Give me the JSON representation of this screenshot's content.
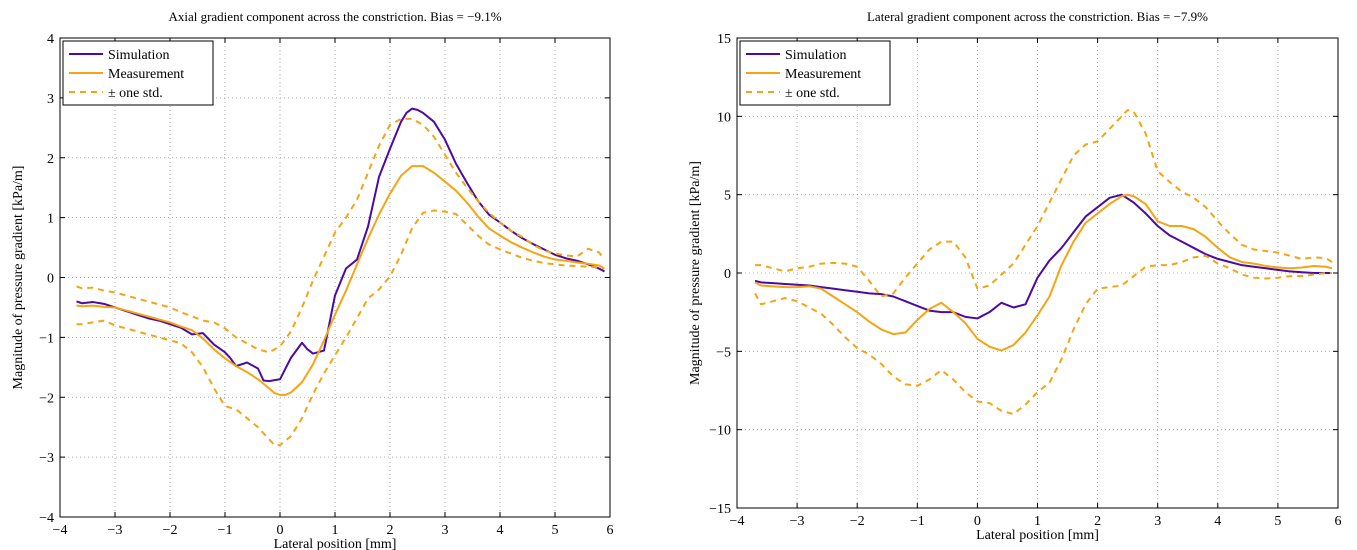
{
  "chart_data": [
    {
      "type": "line",
      "title": "Axial gradient component across the constriction. Bias = −9.1%",
      "xlabel": "Lateral position [mm]",
      "ylabel": "Magnitude of pressure gradient [kPa/m]",
      "xlim": [
        -4,
        6
      ],
      "ylim": [
        -4,
        4
      ],
      "xticks": [
        -4,
        -3,
        -2,
        -1,
        0,
        1,
        2,
        3,
        4,
        5,
        6
      ],
      "yticks": [
        -4,
        -3,
        -2,
        -1,
        0,
        1,
        2,
        3,
        4
      ],
      "xtick_labels": [
        "−4",
        "−3",
        "−2",
        "−1",
        "0",
        "1",
        "2",
        "3",
        "4",
        "5",
        "6"
      ],
      "ytick_labels": [
        "−4",
        "−3",
        "−2",
        "−1",
        "0",
        "1",
        "2",
        "3",
        "4"
      ],
      "grid": true,
      "legend_position": "top-left",
      "legend": [
        "Simulation",
        "Measurement",
        "± one std."
      ],
      "series": [
        {
          "name": "Simulation",
          "color": "#4b0aa4",
          "dash": "solid",
          "x": [
            -3.7,
            -3.6,
            -3.4,
            -3.2,
            -3.0,
            -2.8,
            -2.6,
            -2.4,
            -2.2,
            -2.0,
            -1.8,
            -1.6,
            -1.4,
            -1.2,
            -1.0,
            -0.9,
            -0.8,
            -0.6,
            -0.4,
            -0.3,
            -0.2,
            0.0,
            0.2,
            0.4,
            0.5,
            0.6,
            0.8,
            1.0,
            1.2,
            1.4,
            1.6,
            1.8,
            2.0,
            2.2,
            2.3,
            2.4,
            2.5,
            2.6,
            2.8,
            3.0,
            3.2,
            3.4,
            3.6,
            3.8,
            4.0,
            4.2,
            4.4,
            4.6,
            4.8,
            5.0,
            5.2,
            5.4,
            5.6,
            5.8,
            5.9
          ],
          "y": [
            -0.4,
            -0.43,
            -0.41,
            -0.44,
            -0.5,
            -0.56,
            -0.62,
            -0.68,
            -0.72,
            -0.78,
            -0.84,
            -0.95,
            -0.93,
            -1.12,
            -1.25,
            -1.35,
            -1.48,
            -1.42,
            -1.52,
            -1.72,
            -1.73,
            -1.7,
            -1.34,
            -1.09,
            -1.2,
            -1.27,
            -1.22,
            -0.3,
            0.15,
            0.3,
            0.85,
            1.68,
            2.15,
            2.6,
            2.75,
            2.82,
            2.8,
            2.75,
            2.6,
            2.3,
            1.9,
            1.58,
            1.28,
            1.05,
            0.92,
            0.78,
            0.66,
            0.56,
            0.47,
            0.38,
            0.32,
            0.28,
            0.22,
            0.15,
            0.1
          ]
        },
        {
          "name": "Measurement",
          "color": "#f5a413",
          "dash": "solid",
          "x": [
            -3.7,
            -3.6,
            -3.4,
            -3.2,
            -3.0,
            -2.8,
            -2.6,
            -2.4,
            -2.2,
            -2.0,
            -1.8,
            -1.6,
            -1.4,
            -1.2,
            -1.0,
            -0.8,
            -0.6,
            -0.4,
            -0.2,
            -0.1,
            0.0,
            0.1,
            0.2,
            0.4,
            0.6,
            0.8,
            1.0,
            1.2,
            1.4,
            1.6,
            1.8,
            2.0,
            2.2,
            2.4,
            2.6,
            2.8,
            3.0,
            3.2,
            3.4,
            3.6,
            3.8,
            4.0,
            4.2,
            4.4,
            4.6,
            4.8,
            5.0,
            5.2,
            5.4,
            5.6,
            5.8,
            5.9
          ],
          "y": [
            -0.47,
            -0.48,
            -0.47,
            -0.49,
            -0.5,
            -0.55,
            -0.6,
            -0.65,
            -0.7,
            -0.75,
            -0.82,
            -0.88,
            -1.02,
            -1.2,
            -1.35,
            -1.48,
            -1.58,
            -1.7,
            -1.85,
            -1.93,
            -1.96,
            -1.96,
            -1.92,
            -1.75,
            -1.45,
            -1.05,
            -0.62,
            -0.22,
            0.22,
            0.65,
            1.05,
            1.4,
            1.7,
            1.86,
            1.86,
            1.75,
            1.6,
            1.45,
            1.25,
            1.02,
            0.82,
            0.7,
            0.59,
            0.5,
            0.42,
            0.35,
            0.3,
            0.28,
            0.25,
            0.23,
            0.2,
            0.15
          ]
        },
        {
          "name": "± one std.",
          "color": "#f5a413",
          "dash": "dashed",
          "x": [
            -3.7,
            -3.6,
            -3.4,
            -3.2,
            -3.0,
            -2.8,
            -2.6,
            -2.4,
            -2.2,
            -2.0,
            -1.8,
            -1.6,
            -1.4,
            -1.2,
            -1.0,
            -0.8,
            -0.6,
            -0.4,
            -0.2,
            0.0,
            0.2,
            0.4,
            0.6,
            0.8,
            1.0,
            1.2,
            1.4,
            1.6,
            1.8,
            2.0,
            2.2,
            2.4,
            2.6,
            2.8,
            3.0,
            3.2,
            3.4,
            3.6,
            3.8,
            4.0,
            4.2,
            4.4,
            4.6,
            4.8,
            5.0,
            5.2,
            5.4,
            5.6,
            5.8,
            5.9
          ],
          "y": [
            -0.15,
            -0.18,
            -0.17,
            -0.22,
            -0.25,
            -0.3,
            -0.35,
            -0.4,
            -0.45,
            -0.5,
            -0.58,
            -0.65,
            -0.72,
            -0.75,
            -0.85,
            -1.0,
            -1.1,
            -1.2,
            -1.25,
            -1.15,
            -0.9,
            -0.5,
            -0.05,
            0.35,
            0.75,
            1.0,
            1.3,
            1.75,
            2.2,
            2.55,
            2.65,
            2.65,
            2.55,
            2.35,
            2.05,
            1.75,
            1.5,
            1.28,
            1.08,
            0.92,
            0.78,
            0.68,
            0.55,
            0.45,
            0.4,
            0.37,
            0.35,
            0.48,
            0.42,
            0.3
          ]
        },
        {
          "name": "",
          "color": "#f5a413",
          "dash": "dashed",
          "x": [
            -3.7,
            -3.6,
            -3.4,
            -3.2,
            -3.0,
            -2.8,
            -2.6,
            -2.4,
            -2.2,
            -2.0,
            -1.8,
            -1.6,
            -1.4,
            -1.2,
            -1.0,
            -0.8,
            -0.6,
            -0.4,
            -0.2,
            -0.1,
            0.0,
            0.2,
            0.4,
            0.6,
            0.8,
            1.0,
            1.2,
            1.4,
            1.6,
            1.8,
            2.0,
            2.2,
            2.4,
            2.6,
            2.8,
            3.0,
            3.2,
            3.4,
            3.6,
            3.8,
            4.0,
            4.2,
            4.4,
            4.6,
            4.8,
            5.0,
            5.2,
            5.4,
            5.6,
            5.8,
            5.9
          ],
          "y": [
            -0.78,
            -0.78,
            -0.75,
            -0.72,
            -0.8,
            -0.85,
            -0.9,
            -0.95,
            -1.0,
            -1.05,
            -1.1,
            -1.25,
            -1.5,
            -1.85,
            -2.15,
            -2.2,
            -2.35,
            -2.5,
            -2.7,
            -2.8,
            -2.8,
            -2.65,
            -2.35,
            -1.95,
            -1.6,
            -1.3,
            -1.0,
            -0.68,
            -0.35,
            -0.2,
            0.02,
            0.38,
            0.82,
            1.08,
            1.12,
            1.1,
            1.06,
            0.88,
            0.7,
            0.55,
            0.47,
            0.4,
            0.33,
            0.28,
            0.24,
            0.22,
            0.2,
            0.19,
            0.18,
            0.17,
            0.15
          ]
        }
      ]
    },
    {
      "type": "line",
      "title": "Lateral gradient component across the constriction. Bias = −7.9%",
      "xlabel": "Lateral position [mm]",
      "ylabel": "Magnitude of pressure gradient [kPa/m]",
      "xlim": [
        -4,
        6
      ],
      "ylim": [
        -15,
        15
      ],
      "xticks": [
        -4,
        -3,
        -2,
        -1,
        0,
        1,
        2,
        3,
        4,
        5,
        6
      ],
      "yticks": [
        -15,
        -10,
        -5,
        0,
        5,
        10,
        15
      ],
      "xtick_labels": [
        "−4",
        "−3",
        "−2",
        "−1",
        "0",
        "1",
        "2",
        "3",
        "4",
        "5",
        "6"
      ],
      "ytick_labels": [
        "−15",
        "−10",
        "−5",
        "0",
        "5",
        "10",
        "15"
      ],
      "grid": true,
      "legend_position": "top-left",
      "legend": [
        "Simulation",
        "Measurement",
        "± one std."
      ],
      "series": [
        {
          "name": "Simulation",
          "color": "#4b0aa4",
          "dash": "solid",
          "x": [
            -3.7,
            -3.6,
            -3.4,
            -3.2,
            -3.0,
            -2.8,
            -2.6,
            -2.4,
            -2.2,
            -2.0,
            -1.8,
            -1.6,
            -1.4,
            -1.2,
            -1.0,
            -0.8,
            -0.6,
            -0.4,
            -0.2,
            0.0,
            0.2,
            0.4,
            0.6,
            0.8,
            1.0,
            1.2,
            1.4,
            1.6,
            1.8,
            2.0,
            2.2,
            2.4,
            2.6,
            2.8,
            3.0,
            3.2,
            3.4,
            3.6,
            3.8,
            4.0,
            4.2,
            4.4,
            4.6,
            4.8,
            5.0,
            5.2,
            5.4,
            5.6,
            5.8,
            5.9
          ],
          "y": [
            -0.5,
            -0.6,
            -0.65,
            -0.7,
            -0.75,
            -0.8,
            -0.9,
            -1.0,
            -1.1,
            -1.2,
            -1.3,
            -1.35,
            -1.5,
            -1.8,
            -2.1,
            -2.4,
            -2.5,
            -2.5,
            -2.8,
            -2.9,
            -2.5,
            -1.9,
            -2.2,
            -2.0,
            -0.3,
            0.8,
            1.6,
            2.6,
            3.6,
            4.2,
            4.8,
            5.0,
            4.5,
            3.8,
            3.0,
            2.4,
            2.0,
            1.6,
            1.2,
            0.9,
            0.7,
            0.5,
            0.4,
            0.3,
            0.2,
            0.1,
            0.05,
            0.0,
            0.0,
            0.0
          ]
        },
        {
          "name": "Measurement",
          "color": "#f5a413",
          "dash": "solid",
          "x": [
            -3.7,
            -3.6,
            -3.4,
            -3.2,
            -3.0,
            -2.8,
            -2.6,
            -2.4,
            -2.2,
            -2.0,
            -1.8,
            -1.6,
            -1.4,
            -1.2,
            -1.0,
            -0.8,
            -0.6,
            -0.4,
            -0.2,
            0.0,
            0.2,
            0.4,
            0.6,
            0.8,
            1.0,
            1.2,
            1.4,
            1.6,
            1.8,
            2.0,
            2.2,
            2.4,
            2.5,
            2.6,
            2.8,
            3.0,
            3.2,
            3.4,
            3.6,
            3.8,
            4.0,
            4.2,
            4.4,
            4.6,
            4.8,
            5.0,
            5.2,
            5.4,
            5.6,
            5.8,
            5.9
          ],
          "y": [
            -0.6,
            -0.8,
            -0.85,
            -0.9,
            -0.9,
            -0.85,
            -1.0,
            -1.5,
            -2.0,
            -2.5,
            -3.1,
            -3.6,
            -3.9,
            -3.8,
            -3.0,
            -2.3,
            -1.9,
            -2.5,
            -3.2,
            -4.2,
            -4.7,
            -4.95,
            -4.6,
            -3.8,
            -2.7,
            -1.5,
            0.5,
            2.0,
            3.2,
            3.8,
            4.4,
            4.9,
            5.0,
            4.9,
            4.4,
            3.3,
            3.0,
            3.0,
            2.8,
            2.3,
            1.6,
            1.0,
            0.7,
            0.6,
            0.45,
            0.35,
            0.3,
            0.35,
            0.45,
            0.4,
            0.3
          ]
        },
        {
          "name": "± one std.",
          "color": "#f5a413",
          "dash": "dashed",
          "x": [
            -3.7,
            -3.6,
            -3.4,
            -3.2,
            -3.0,
            -2.8,
            -2.6,
            -2.4,
            -2.2,
            -2.0,
            -1.8,
            -1.6,
            -1.4,
            -1.2,
            -1.0,
            -0.8,
            -0.6,
            -0.4,
            -0.2,
            0.0,
            0.2,
            0.4,
            0.6,
            0.8,
            1.0,
            1.2,
            1.4,
            1.6,
            1.8,
            2.0,
            2.2,
            2.4,
            2.5,
            2.6,
            2.8,
            3.0,
            3.2,
            3.4,
            3.6,
            3.8,
            4.0,
            4.2,
            4.4,
            4.6,
            4.8,
            5.0,
            5.2,
            5.4,
            5.6,
            5.8,
            5.9
          ],
          "y": [
            0.5,
            0.5,
            0.3,
            0.1,
            0.3,
            0.4,
            0.6,
            0.65,
            0.6,
            0.4,
            -0.5,
            -1.5,
            -1.3,
            -0.3,
            0.6,
            1.5,
            2.0,
            2.0,
            1.0,
            -1.0,
            -0.8,
            -0.1,
            0.6,
            1.8,
            3.0,
            4.5,
            6.0,
            7.5,
            8.2,
            8.4,
            9.2,
            10.0,
            10.4,
            10.3,
            8.9,
            6.5,
            5.8,
            5.2,
            4.8,
            4.2,
            3.3,
            2.5,
            1.8,
            1.5,
            1.4,
            1.3,
            1.1,
            0.9,
            1.0,
            0.95,
            0.7
          ]
        },
        {
          "name": "",
          "color": "#f5a413",
          "dash": "dashed",
          "x": [
            -3.7,
            -3.6,
            -3.4,
            -3.2,
            -3.0,
            -2.8,
            -2.6,
            -2.4,
            -2.2,
            -2.0,
            -1.8,
            -1.6,
            -1.4,
            -1.2,
            -1.0,
            -0.8,
            -0.6,
            -0.4,
            -0.2,
            0.0,
            0.2,
            0.4,
            0.6,
            0.8,
            1.0,
            1.2,
            1.4,
            1.6,
            1.8,
            2.0,
            2.2,
            2.4,
            2.6,
            2.8,
            3.0,
            3.2,
            3.4,
            3.6,
            3.8,
            4.0,
            4.2,
            4.4,
            4.6,
            4.8,
            5.0,
            5.2,
            5.4,
            5.6,
            5.8,
            5.9
          ],
          "y": [
            -1.3,
            -2.0,
            -1.8,
            -1.6,
            -1.8,
            -2.2,
            -2.6,
            -3.3,
            -4.1,
            -4.8,
            -5.2,
            -5.8,
            -6.6,
            -7.1,
            -7.2,
            -6.8,
            -6.2,
            -6.8,
            -7.6,
            -8.2,
            -8.3,
            -8.8,
            -9.0,
            -8.4,
            -7.6,
            -7.0,
            -5.5,
            -3.6,
            -2.0,
            -1.0,
            -0.9,
            -0.8,
            -0.2,
            0.4,
            0.5,
            0.5,
            0.7,
            1.0,
            1.1,
            0.6,
            0.3,
            -0.1,
            -0.3,
            -0.35,
            -0.3,
            -0.2,
            -0.2,
            -0.1,
            0.0,
            0.0
          ]
        }
      ]
    }
  ]
}
